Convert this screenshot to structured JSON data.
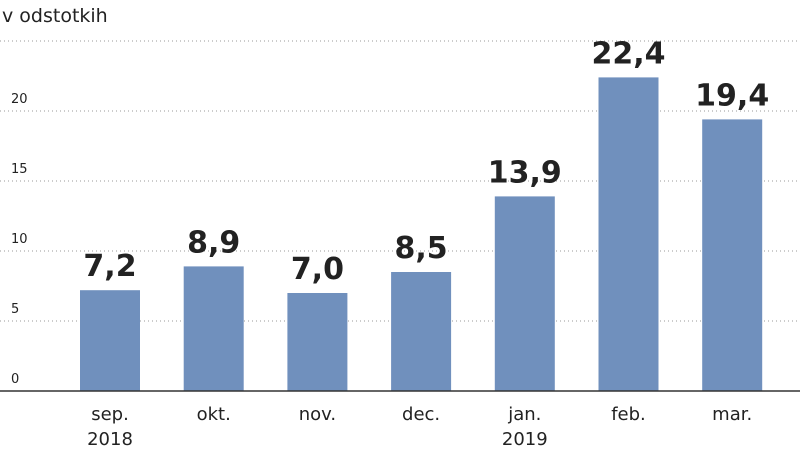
{
  "chart_data": {
    "type": "bar",
    "title": "",
    "unit_label": "v odstotkih",
    "xlabel": "",
    "ylabel": "",
    "categories": [
      {
        "label": "sep.",
        "sublabel": "2018"
      },
      {
        "label": "okt.",
        "sublabel": ""
      },
      {
        "label": "nov.",
        "sublabel": ""
      },
      {
        "label": "dec.",
        "sublabel": ""
      },
      {
        "label": "jan.",
        "sublabel": "2019"
      },
      {
        "label": "feb.",
        "sublabel": ""
      },
      {
        "label": "mar.",
        "sublabel": ""
      }
    ],
    "values": [
      7.2,
      8.9,
      7.0,
      8.5,
      13.9,
      22.4,
      19.4
    ],
    "value_labels": [
      "7,2",
      "8,9",
      "7,0",
      "8,5",
      "13,9",
      "22,4",
      "19,4"
    ],
    "yticks": [
      0,
      5,
      10,
      15,
      20
    ],
    "ylim": [
      0,
      25
    ],
    "grid": true,
    "legend": "none",
    "bar_color": "#7090bd"
  }
}
